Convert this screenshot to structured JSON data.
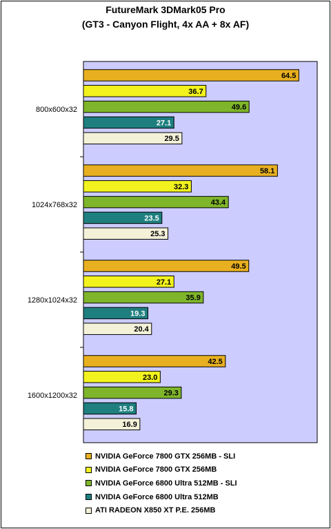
{
  "chart_data": {
    "type": "bar",
    "orientation": "horizontal",
    "title": "FutureMark 3DMark05 Pro",
    "subtitle": "(GT3 - Canyon Flight, 4x AA + 8x AF)",
    "categories": [
      "800x600x32",
      "1024x768x32",
      "1280x1024x32",
      "1600x1200x32"
    ],
    "series": [
      {
        "name": "NVIDIA GeForce 7800 GTX 256MB - SLI",
        "color": "#E8B020",
        "values": [
          64.5,
          58.1,
          49.5,
          42.5
        ]
      },
      {
        "name": "NVIDIA GeForce 7800 GTX 256MB",
        "color": "#F2F21E",
        "values": [
          36.7,
          32.3,
          27.1,
          23.0
        ]
      },
      {
        "name": "NVIDIA GeForce 6800 Ultra 512MB - SLI",
        "color": "#7FB52A",
        "values": [
          49.6,
          43.4,
          35.9,
          29.3
        ]
      },
      {
        "name": "NVIDIA GeForce 6800 Ultra 512MB",
        "color": "#1F7F7F",
        "values": [
          27.1,
          23.5,
          19.3,
          15.8
        ]
      },
      {
        "name": "ATI RADEON X850 XT P.E. 256MB",
        "color": "#F3F1D8",
        "values": [
          29.5,
          25.3,
          20.4,
          16.9
        ]
      }
    ],
    "value_labels": [
      [
        "64.5",
        "58.1",
        "49.5",
        "42.5"
      ],
      [
        "36.7",
        "32.3",
        "27.1",
        "23.0"
      ],
      [
        "49.6",
        "43.4",
        "35.9",
        "29.3"
      ],
      [
        "27.1",
        "23.5",
        "19.3",
        "15.8"
      ],
      [
        "29.5",
        "25.3",
        "20.4",
        "16.9"
      ]
    ],
    "xlim": [
      0,
      70
    ],
    "grid": false,
    "plot_background": "#CCCCFF",
    "legend_position": "bottom"
  }
}
